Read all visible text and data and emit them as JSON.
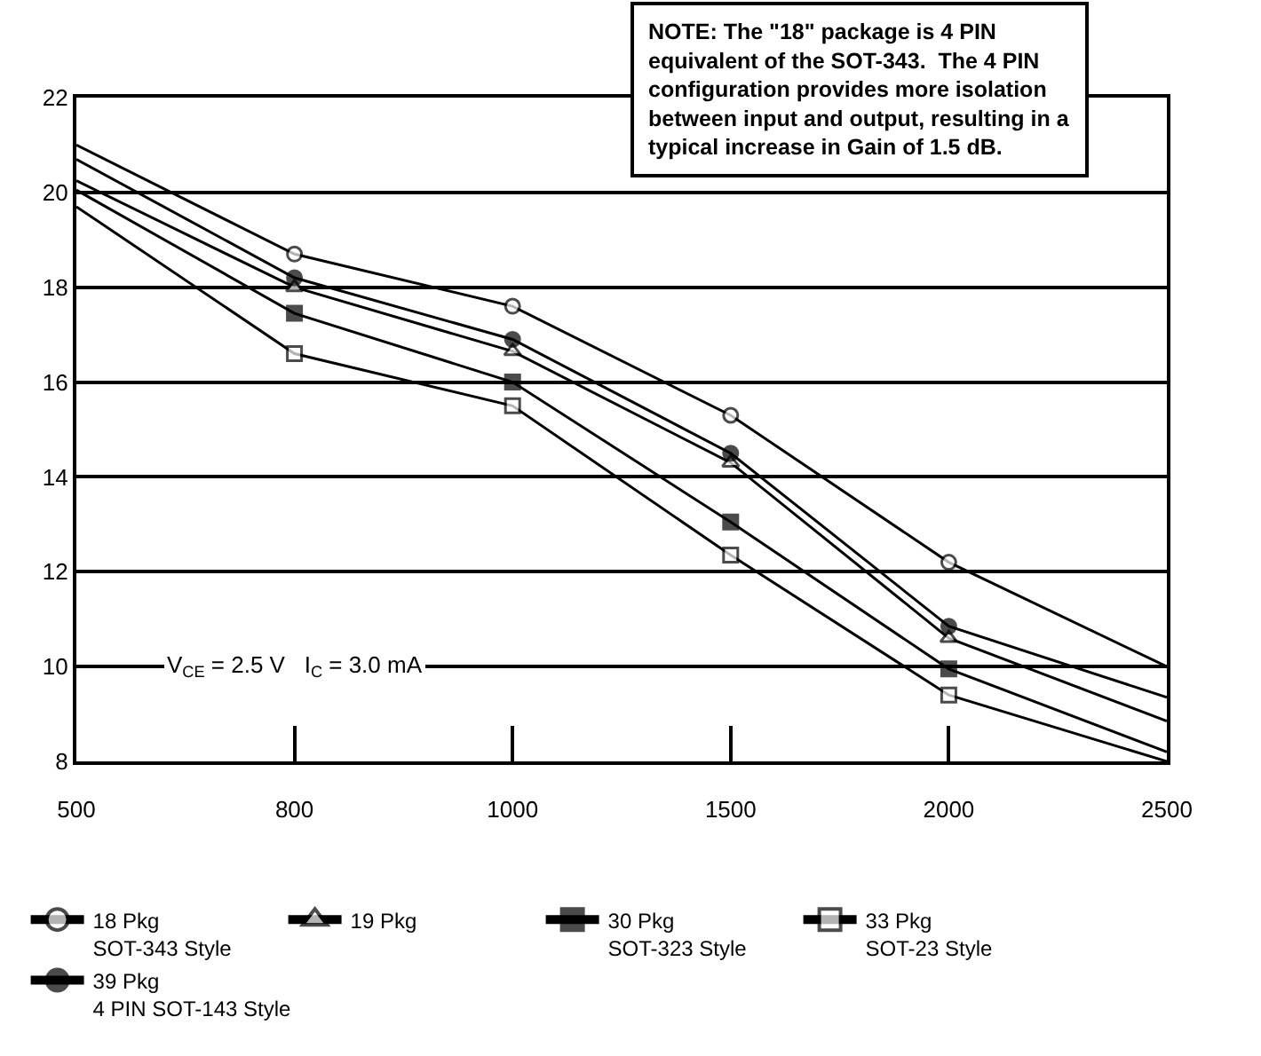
{
  "chart_data": {
    "type": "line",
    "categories": [
      "500",
      "800",
      "1000",
      "1500",
      "2000",
      "2500"
    ],
    "series": [
      {
        "name": "18 Pkg\nSOT-343 Style",
        "color": "#000000",
        "marker": "circle-open",
        "values": [
          21.0,
          18.7,
          17.6,
          15.3,
          12.2,
          10.0
        ]
      },
      {
        "name": "19 Pkg",
        "color": "#000000",
        "marker": "triangle-open",
        "values": [
          20.25,
          18.0,
          16.65,
          14.3,
          10.6,
          8.85
        ]
      },
      {
        "name": "30 Pkg\nSOT-323 Style",
        "color": "#000000",
        "marker": "square",
        "values": [
          20.05,
          17.45,
          16.0,
          13.05,
          9.95,
          8.2
        ]
      },
      {
        "name": "33 Pkg\nSOT-23 Style",
        "color": "#000000",
        "marker": "square-open",
        "values": [
          19.7,
          16.6,
          15.5,
          12.35,
          9.4,
          8.0
        ]
      },
      {
        "name": "39 Pkg\n4 PIN SOT-143 Style",
        "color": "#000000",
        "marker": "circle",
        "values": [
          20.7,
          18.2,
          16.9,
          14.5,
          10.85,
          9.35
        ]
      }
    ],
    "ylim": [
      8,
      22
    ],
    "yticks": [
      8,
      10,
      12,
      14,
      16,
      18,
      20,
      22
    ],
    "grid": "y",
    "legend": "bottom",
    "line_style": "solid",
    "annotations": [
      "V$_{CE}$ = 2.5 V   I$_{C}$ = 3.0 mA",
      "NOTE: The \"18\" package is 4 PIN\nequivalent of the SOT-343.  The 4 PIN\nconfiguration provides more isolation\nbetween input and output, resulting in a\ntypical increase in Gain of 1.5 dB."
    ]
  }
}
